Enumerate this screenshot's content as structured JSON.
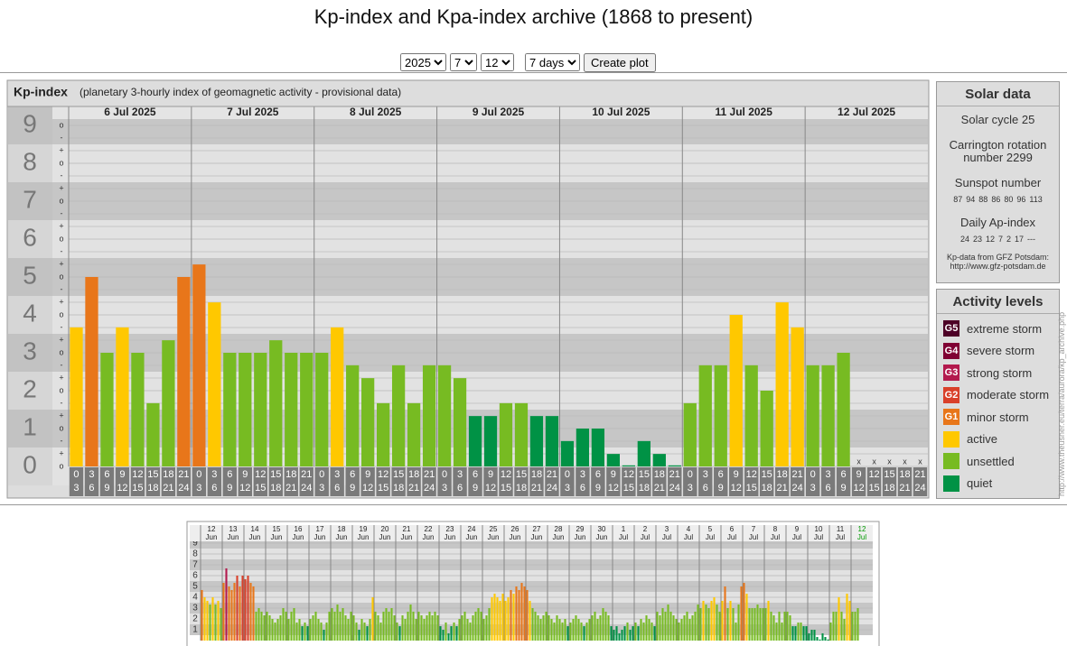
{
  "header": {
    "title": "Kp-index and Kpa-index archive (1868 to present)"
  },
  "controls": {
    "year": "2025",
    "month": "7",
    "day": "12",
    "range": "7 days",
    "button": "Create plot"
  },
  "chart_data": [
    {
      "type": "bar",
      "title": "Kp-index",
      "subtitle": "(planetary 3-hourly index of geomagnetic activity - provisional data)",
      "categories": [
        "6 Jul 2025",
        "7 Jul 2025",
        "8 Jul 2025",
        "9 Jul 2025",
        "10 Jul 2025",
        "11 Jul 2025",
        "12 Jul 2025"
      ],
      "slot_labels": [
        [
          "0",
          "3"
        ],
        [
          "3",
          "6"
        ],
        [
          "6",
          "9"
        ],
        [
          "9",
          "12"
        ],
        [
          "12",
          "15"
        ],
        [
          "15",
          "18"
        ],
        [
          "18",
          "21"
        ],
        [
          "21",
          "24"
        ]
      ],
      "kp_suffixes": [
        "+",
        "o",
        "-"
      ],
      "missing_label": "x",
      "values": [
        [
          3.67,
          5,
          3,
          3.67,
          3,
          1.67,
          3.33,
          5
        ],
        [
          5.33,
          4.33,
          3,
          3,
          3,
          3.33,
          3,
          3
        ],
        [
          3,
          3.67,
          2.67,
          2.33,
          1.67,
          2.67,
          1.67,
          2.67
        ],
        [
          2.67,
          2.33,
          1.33,
          1.33,
          1.67,
          1.67,
          1.33,
          1.33
        ],
        [
          0.67,
          1,
          1,
          0.33,
          0,
          0.67,
          0.33,
          0
        ],
        [
          1.67,
          2.67,
          2.67,
          4,
          2.67,
          2,
          4.33,
          3.67
        ],
        [
          2.67,
          2.67,
          3,
          null,
          null,
          null,
          null,
          null
        ]
      ],
      "ylim": [
        0,
        9
      ],
      "yticks": [
        0,
        1,
        2,
        3,
        4,
        5,
        6,
        7,
        8,
        9
      ],
      "grid": true
    },
    {
      "type": "bar",
      "categories": [
        [
          "12",
          "Jun"
        ],
        [
          "13",
          "Jun"
        ],
        [
          "14",
          "Jun"
        ],
        [
          "15",
          "Jun"
        ],
        [
          "16",
          "Jun"
        ],
        [
          "17",
          "Jun"
        ],
        [
          "18",
          "Jun"
        ],
        [
          "19",
          "Jun"
        ],
        [
          "20",
          "Jun"
        ],
        [
          "21",
          "Jun"
        ],
        [
          "22",
          "Jun"
        ],
        [
          "23",
          "Jun"
        ],
        [
          "24",
          "Jun"
        ],
        [
          "25",
          "Jun"
        ],
        [
          "26",
          "Jun"
        ],
        [
          "27",
          "Jun"
        ],
        [
          "28",
          "Jun"
        ],
        [
          "29",
          "Jun"
        ],
        [
          "30",
          "Jun"
        ],
        [
          "1",
          "Jul"
        ],
        [
          "2",
          "Jul"
        ],
        [
          "3",
          "Jul"
        ],
        [
          "4",
          "Jul"
        ],
        [
          "5",
          "Jul"
        ],
        [
          "6",
          "Jul"
        ],
        [
          "7",
          "Jul"
        ],
        [
          "8",
          "Jul"
        ],
        [
          "9",
          "Jul"
        ],
        [
          "10",
          "Jul"
        ],
        [
          "11",
          "Jul"
        ],
        [
          "12",
          "Jul"
        ]
      ],
      "current_color": "#009900",
      "values": [
        [
          4.67,
          4,
          3.67,
          3.33,
          4,
          3.33,
          3.67,
          3
        ],
        [
          5.33,
          6.67,
          5,
          4.67,
          5.33,
          6,
          5,
          6
        ],
        [
          5.67,
          6,
          5.33,
          5,
          2.67,
          3,
          2.67,
          2.33
        ],
        [
          2.67,
          2.33,
          2,
          1.67,
          2,
          2.33,
          3,
          2.67
        ],
        [
          2,
          2.67,
          3,
          1.67,
          2,
          1.33,
          1.67,
          1.33
        ],
        [
          2,
          2.33,
          2.67,
          2,
          1.67,
          1,
          1.67,
          2.67
        ],
        [
          3,
          2.67,
          3.33,
          2.67,
          3,
          2.33,
          2,
          2.67
        ],
        [
          2.33,
          1.67,
          1,
          2,
          1.67,
          1.33,
          2,
          4
        ],
        [
          2.67,
          2.33,
          1.67,
          2.67,
          3,
          2.67,
          3,
          2.33
        ],
        [
          1.67,
          1.33,
          2.33,
          2,
          2.67,
          3.33,
          2.67,
          2
        ],
        [
          2.67,
          2.33,
          2,
          2.33,
          2.67,
          2.33,
          2.67,
          2.33
        ],
        [
          1.33,
          1,
          1.67,
          0.67,
          1.33,
          1.67,
          1.33,
          2
        ],
        [
          2.33,
          2.67,
          2,
          1.67,
          2.33,
          2.67,
          3,
          2.67
        ],
        [
          2,
          2.33,
          3,
          4,
          4.33,
          4,
          3.67,
          4.33
        ],
        [
          3.67,
          4,
          4.67,
          4.33,
          5,
          4.67,
          5.33,
          5
        ],
        [
          4.67,
          3.67,
          3,
          2.67,
          2.33,
          2,
          2.33,
          2.67
        ],
        [
          2.33,
          2,
          1.67,
          2.33,
          2,
          1.67,
          2,
          1.33
        ],
        [
          1.67,
          2,
          2.33,
          2,
          1.67,
          1.33,
          1.67,
          2
        ],
        [
          2.33,
          2.67,
          2,
          2.33,
          3,
          2.67,
          2.33,
          1.33
        ],
        [
          1,
          1.33,
          0.67,
          1,
          1.33,
          1.67,
          1,
          1.33
        ],
        [
          1.67,
          1.33,
          2,
          1.67,
          2.33,
          2,
          1.67,
          1.33
        ],
        [
          2.67,
          2.33,
          3,
          2.67,
          3.33,
          2.67,
          2.33,
          2
        ],
        [
          1.67,
          2,
          2.33,
          2.67,
          2,
          2.33,
          2.67,
          3.33
        ],
        [
          3,
          3.67,
          3.33,
          3,
          3.67,
          4,
          3.33,
          2.67
        ],
        [
          3.67,
          5,
          3,
          3.67,
          3,
          1.67,
          3.33,
          5
        ],
        [
          5.33,
          4.33,
          3,
          3,
          3,
          3.33,
          3,
          3
        ],
        [
          3,
          3.67,
          2.67,
          2.33,
          1.67,
          2.67,
          1.67,
          2.67
        ],
        [
          2.67,
          2.33,
          1.33,
          1.33,
          1.67,
          1.67,
          1.33,
          1.33
        ],
        [
          0.67,
          1,
          1,
          0.33,
          0,
          0.67,
          0.33,
          0
        ],
        [
          1.67,
          2.67,
          2.67,
          4,
          2.67,
          2,
          4.33,
          3.67
        ],
        [
          2.67,
          2.67,
          3,
          null,
          null,
          null,
          null,
          null
        ]
      ],
      "ylim": [
        0,
        9
      ],
      "yticks": [
        1,
        2,
        3,
        4,
        5,
        6,
        7,
        8,
        9
      ],
      "grid": true
    }
  ],
  "solar": {
    "title": "Solar data",
    "cycle": "Solar cycle 25",
    "carrington": "Carrington rotation number 2299",
    "sunspot_title": "Sunspot number",
    "sunspot": [
      87,
      94,
      88,
      86,
      80,
      96,
      113
    ],
    "ap_title": "Daily Ap-index",
    "ap": [
      24,
      23,
      12,
      7,
      2,
      17,
      "---"
    ],
    "source": "Kp-data from GFZ Potsdam:",
    "source_url": "http://www.gfz-potsdam.de"
  },
  "activity": {
    "title": "Activity levels",
    "levels": [
      {
        "code": "G5",
        "label": "extreme storm",
        "color": "#4d0026"
      },
      {
        "code": "G4",
        "label": "severe storm",
        "color": "#800033"
      },
      {
        "code": "G3",
        "label": "strong storm",
        "color": "#b3194d"
      },
      {
        "code": "G2",
        "label": "moderate storm",
        "color": "#d9402a"
      },
      {
        "code": "G1",
        "label": "minor storm",
        "color": "#e8761a"
      },
      {
        "label": "active",
        "color": "#ffc800"
      },
      {
        "label": "unsettled",
        "color": "#77bb22"
      },
      {
        "label": "quiet",
        "color": "#009245"
      }
    ]
  },
  "side_url": "http://www.theusner.eu/terra/aurora/kp_archive.php"
}
